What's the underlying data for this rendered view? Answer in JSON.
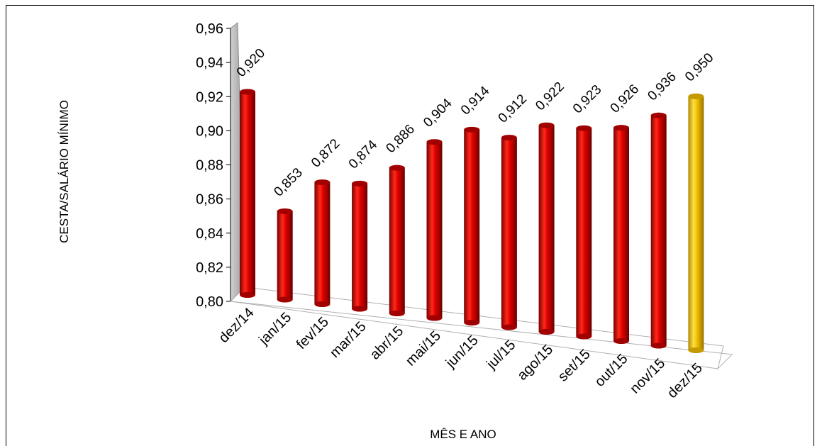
{
  "chart_data": {
    "type": "bar",
    "title": "",
    "xlabel": "MÊS E ANO",
    "ylabel": "CESTA/SALÁRIO MÍNIMO",
    "ylim": [
      0.8,
      0.96
    ],
    "y_ticks": [
      "0,80",
      "0,82",
      "0,84",
      "0,86",
      "0,88",
      "0,90",
      "0,92",
      "0,94",
      "0,96"
    ],
    "grid": false,
    "categories": [
      "dez/14",
      "jan/15",
      "fev/15",
      "mar/15",
      "abr/15",
      "mai/15",
      "jun/15",
      "jul/15",
      "ago/15",
      "set/15",
      "out/15",
      "nov/15",
      "dez/15"
    ],
    "values": [
      0.92,
      0.853,
      0.872,
      0.874,
      0.886,
      0.904,
      0.914,
      0.912,
      0.922,
      0.923,
      0.926,
      0.936,
      0.95
    ],
    "data_labels": [
      "0,920",
      "0,853",
      "0,872",
      "0,874",
      "0,886",
      "0,904",
      "0,914",
      "0,912",
      "0,922",
      "0,923",
      "0,926",
      "0,936",
      "0,950"
    ],
    "colors": {
      "bar": "#e00000",
      "highlight": "#f2c200",
      "back_wall": "#b0b0b0"
    },
    "highlight_index": 12
  }
}
